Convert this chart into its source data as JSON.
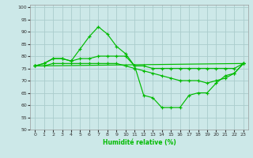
{
  "xlabel": "Humidité relative (%)",
  "background_color": "#cce8e8",
  "grid_color": "#aacccc",
  "line_color": "#00bb00",
  "xlim": [
    -0.5,
    23.5
  ],
  "ylim": [
    50,
    101
  ],
  "yticks": [
    50,
    55,
    60,
    65,
    70,
    75,
    80,
    85,
    90,
    95,
    100
  ],
  "xticks": [
    0,
    1,
    2,
    3,
    4,
    5,
    6,
    7,
    8,
    9,
    10,
    11,
    12,
    13,
    14,
    15,
    16,
    17,
    18,
    19,
    20,
    21,
    22,
    23
  ],
  "lines": [
    {
      "x": [
        0,
        1,
        2,
        3,
        4,
        5,
        6,
        7,
        8,
        9,
        10,
        11,
        12,
        13,
        14,
        15,
        16,
        17,
        18,
        19,
        20,
        21,
        22,
        23
      ],
      "y": [
        76,
        77,
        79,
        79,
        78,
        83,
        88,
        92,
        89,
        84,
        81,
        76,
        64,
        63,
        59,
        59,
        59,
        64,
        65,
        65,
        69,
        72,
        73,
        77
      ]
    },
    {
      "x": [
        0,
        1,
        2,
        3,
        4,
        5,
        6,
        7,
        8,
        9,
        10,
        11,
        12,
        13,
        14,
        15,
        16,
        17,
        18,
        19,
        20,
        21,
        22,
        23
      ],
      "y": [
        76,
        77,
        79,
        79,
        78,
        79,
        79,
        80,
        80,
        80,
        80,
        76,
        76,
        75,
        75,
        75,
        75,
        75,
        75,
        75,
        75,
        75,
        75,
        77
      ]
    },
    {
      "x": [
        0,
        1,
        2,
        3,
        4,
        5,
        6,
        7,
        8,
        9,
        10,
        11,
        12,
        13,
        14,
        15,
        16,
        17,
        18,
        19,
        20,
        21,
        22,
        23
      ],
      "y": [
        76,
        76,
        77,
        77,
        77,
        77,
        77,
        77,
        77,
        77,
        76,
        75,
        74,
        73,
        72,
        71,
        70,
        70,
        70,
        69,
        70,
        71,
        73,
        77
      ]
    },
    {
      "x": [
        0,
        23
      ],
      "y": [
        76,
        77
      ]
    }
  ]
}
